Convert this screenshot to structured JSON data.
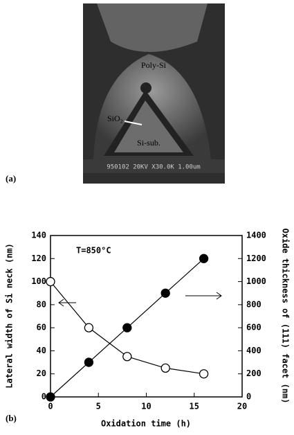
{
  "figure": {
    "panel_a_label": "(a)",
    "panel_b_label": "(b)",
    "sem_labels": {
      "poly": "Poly-Si",
      "oxide": "SiO₂",
      "substrate": "Si-sub.",
      "caption_bar": "950102 20KV X30.0K 1.00um"
    }
  },
  "chart_data": {
    "type": "scatter",
    "annotation": "T=850°C",
    "xlabel": "Oxidation time (h)",
    "ylabel": "Lateral width of Si neck (nm)",
    "y2label": "Oxide thickness of (111) facet (nm)",
    "xlim": [
      0,
      20
    ],
    "xticks": [
      0,
      5,
      10,
      15,
      20
    ],
    "ylim": [
      0,
      140
    ],
    "yticks": [
      0,
      20,
      40,
      60,
      80,
      100,
      120,
      140
    ],
    "y2lim": [
      0,
      1400
    ],
    "y2ticks": [
      0,
      200,
      400,
      600,
      800,
      1000,
      1200,
      1400
    ],
    "x": [
      0,
      4,
      8,
      12,
      16
    ],
    "series": [
      {
        "color": "#000000",
        "marker": "open",
        "values": [
          100,
          60,
          35,
          25,
          20
        ]
      },
      {
        "color": "#000000",
        "marker": "filled",
        "axis": "y2",
        "values": [
          0,
          300,
          600,
          900,
          1200
        ]
      }
    ]
  }
}
